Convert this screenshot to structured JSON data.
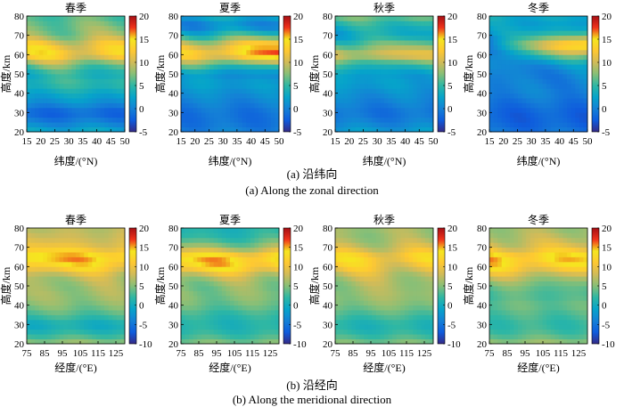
{
  "figure": {
    "caption_a_cn": "(a) 沿纬向",
    "caption_a_en": "(a) Along the zonal direction",
    "caption_b_cn": "(b) 沿经向",
    "caption_b_en": "(b) Along the meridional direction"
  },
  "colormap": [
    "#352a87",
    "#0f5cdd",
    "#1481d6",
    "#06a4ca",
    "#2eb7a4",
    "#87bf77",
    "#d1bb59",
    "#fec832",
    "#f5e61f",
    "#f0321a",
    "#a50f15"
  ],
  "chart_data": [
    {
      "type": "heatmap",
      "id": "a-spring",
      "title": "春季",
      "xlabel": "纬度/(°N)",
      "ylabel": "高度/km",
      "x": [
        15,
        20,
        25,
        30,
        35,
        40,
        45,
        50
      ],
      "xlim": [
        15,
        50
      ],
      "xticks": [
        "15",
        "20",
        "25",
        "30",
        "35",
        "40",
        "45",
        "50"
      ],
      "ylim": [
        20,
        80
      ],
      "yticks": [
        "20",
        "30",
        "40",
        "50",
        "60",
        "70",
        "80"
      ],
      "colorbar": {
        "min": -5,
        "max": 20,
        "ticks": [
          "-5",
          "0",
          "5",
          "10",
          "15",
          "20"
        ]
      },
      "profile": {
        "alt": [
          20,
          25,
          30,
          35,
          40,
          45,
          50,
          55,
          60,
          65,
          70,
          75,
          80
        ],
        "val": [
          3,
          0,
          -2,
          1,
          3,
          5,
          4,
          7,
          13,
          12,
          8,
          7,
          6
        ]
      }
    },
    {
      "type": "heatmap",
      "id": "a-summer",
      "title": "夏季",
      "xlabel": "纬度/(°N)",
      "ylabel": "高度/km",
      "x": [
        15,
        20,
        25,
        30,
        35,
        40,
        45,
        50
      ],
      "xlim": [
        15,
        50
      ],
      "xticks": [
        "15",
        "20",
        "25",
        "30",
        "35",
        "40",
        "45",
        "50"
      ],
      "ylim": [
        20,
        80
      ],
      "yticks": [
        "20",
        "30",
        "40",
        "50",
        "60",
        "70",
        "80"
      ],
      "colorbar": {
        "min": -5,
        "max": 20,
        "ticks": [
          "-5",
          "0",
          "5",
          "10",
          "15",
          "20"
        ]
      },
      "profile": {
        "alt": [
          20,
          25,
          30,
          35,
          40,
          45,
          50,
          55,
          60,
          65,
          70,
          75,
          80
        ],
        "val": [
          0,
          -1,
          -1,
          0,
          1,
          2,
          1,
          6,
          13,
          11,
          5,
          0,
          3
        ]
      }
    },
    {
      "type": "heatmap",
      "id": "a-autumn",
      "title": "秋季",
      "xlabel": "纬度/(°N)",
      "ylabel": "高度/km",
      "x": [
        15,
        20,
        25,
        30,
        35,
        40,
        45,
        50
      ],
      "xlim": [
        15,
        50
      ],
      "xticks": [
        "15",
        "20",
        "25",
        "30",
        "35",
        "40",
        "45",
        "50"
      ],
      "ylim": [
        20,
        80
      ],
      "yticks": [
        "20",
        "30",
        "40",
        "50",
        "60",
        "70",
        "80"
      ],
      "colorbar": {
        "min": -5,
        "max": 20,
        "ticks": [
          "-5",
          "0",
          "5",
          "10",
          "15",
          "20"
        ]
      },
      "profile": {
        "alt": [
          20,
          25,
          30,
          35,
          40,
          45,
          50,
          55,
          60,
          65,
          70,
          75,
          80
        ],
        "val": [
          2,
          0,
          -1,
          0,
          1,
          2,
          2,
          5,
          11,
          7,
          3,
          4,
          7
        ]
      }
    },
    {
      "type": "heatmap",
      "id": "a-winter",
      "title": "冬季",
      "xlabel": "纬度/(°N)",
      "ylabel": "高度/km",
      "x": [
        15,
        20,
        25,
        30,
        35,
        40,
        45,
        50
      ],
      "xlim": [
        15,
        50
      ],
      "xticks": [
        "15",
        "20",
        "25",
        "30",
        "35",
        "40",
        "45",
        "50"
      ],
      "ylim": [
        20,
        80
      ],
      "yticks": [
        "20",
        "30",
        "40",
        "50",
        "60",
        "70",
        "80"
      ],
      "colorbar": {
        "min": -5,
        "max": 20,
        "ticks": [
          "-5",
          "0",
          "5",
          "10",
          "15",
          "20"
        ]
      },
      "profile": {
        "alt": [
          20,
          25,
          30,
          35,
          40,
          45,
          50,
          55,
          60,
          65,
          70,
          75,
          80
        ],
        "val": [
          -1,
          -2,
          -2,
          -1,
          0,
          0,
          0,
          1,
          4,
          8,
          4,
          2,
          3
        ]
      }
    },
    {
      "type": "heatmap",
      "id": "b-spring",
      "title": "春季",
      "xlabel": "经度/(°E)",
      "ylabel": "高度/km",
      "x": [
        75,
        85,
        95,
        105,
        115,
        125
      ],
      "xlim": [
        75,
        130
      ],
      "xticks": [
        "75",
        "85",
        "95",
        "105",
        "115",
        "125"
      ],
      "ylim": [
        20,
        80
      ],
      "yticks": [
        "20",
        "30",
        "40",
        "50",
        "60",
        "70",
        "80"
      ],
      "colorbar": {
        "min": -10,
        "max": 20,
        "ticks": [
          "-10",
          "-5",
          "0",
          "5",
          "10",
          "15",
          "20"
        ]
      },
      "profile": {
        "alt": [
          20,
          25,
          30,
          35,
          40,
          45,
          50,
          55,
          60,
          65,
          70,
          75,
          80
        ],
        "val": [
          6,
          2,
          0,
          3,
          5,
          6,
          6,
          7,
          12,
          15,
          10,
          8,
          7
        ]
      }
    },
    {
      "type": "heatmap",
      "id": "b-summer",
      "title": "夏季",
      "xlabel": "经度/(°E)",
      "ylabel": "高度/km",
      "x": [
        75,
        85,
        95,
        105,
        115,
        125
      ],
      "xlim": [
        75,
        130
      ],
      "xticks": [
        "75",
        "85",
        "95",
        "105",
        "115",
        "125"
      ],
      "ylim": [
        20,
        80
      ],
      "yticks": [
        "20",
        "30",
        "40",
        "50",
        "60",
        "70",
        "80"
      ],
      "colorbar": {
        "min": -10,
        "max": 20,
        "ticks": [
          "-10",
          "-5",
          "0",
          "5",
          "10",
          "15",
          "20"
        ]
      },
      "profile": {
        "alt": [
          20,
          25,
          30,
          35,
          40,
          45,
          50,
          55,
          60,
          65,
          70,
          75,
          80
        ],
        "val": [
          5,
          2,
          1,
          2,
          4,
          5,
          5,
          7,
          13,
          14,
          6,
          2,
          1
        ]
      }
    },
    {
      "type": "heatmap",
      "id": "b-autumn",
      "title": "秋季",
      "xlabel": "经度/(°E)",
      "ylabel": "高度/km",
      "x": [
        75,
        85,
        95,
        105,
        115,
        125
      ],
      "xlim": [
        75,
        130
      ],
      "xticks": [
        "75",
        "85",
        "95",
        "105",
        "115",
        "125"
      ],
      "ylim": [
        20,
        80
      ],
      "yticks": [
        "20",
        "30",
        "40",
        "50",
        "60",
        "70",
        "80"
      ],
      "colorbar": {
        "min": -10,
        "max": 20,
        "ticks": [
          "-10",
          "-5",
          "0",
          "5",
          "10",
          "15",
          "20"
        ]
      },
      "profile": {
        "alt": [
          20,
          25,
          30,
          35,
          40,
          45,
          50,
          55,
          60,
          65,
          70,
          75,
          80
        ],
        "val": [
          5,
          2,
          1,
          3,
          5,
          6,
          6,
          7,
          10,
          12,
          8,
          6,
          6
        ]
      }
    },
    {
      "type": "heatmap",
      "id": "b-winter",
      "title": "冬季",
      "xlabel": "经度/(°E)",
      "ylabel": "高度/km",
      "x": [
        75,
        85,
        95,
        105,
        115,
        125
      ],
      "xlim": [
        75,
        130
      ],
      "xticks": [
        "75",
        "85",
        "95",
        "105",
        "115",
        "125"
      ],
      "ylim": [
        20,
        80
      ],
      "yticks": [
        "20",
        "30",
        "40",
        "50",
        "60",
        "70",
        "80"
      ],
      "colorbar": {
        "min": -10,
        "max": 20,
        "ticks": [
          "-10",
          "-5",
          "0",
          "5",
          "10",
          "15",
          "20"
        ]
      },
      "profile": {
        "alt": [
          20,
          25,
          30,
          35,
          40,
          45,
          50,
          55,
          60,
          65,
          70,
          75,
          80
        ],
        "val": [
          6,
          3,
          2,
          3,
          4,
          3,
          4,
          7,
          12,
          14,
          9,
          7,
          6
        ]
      }
    }
  ]
}
